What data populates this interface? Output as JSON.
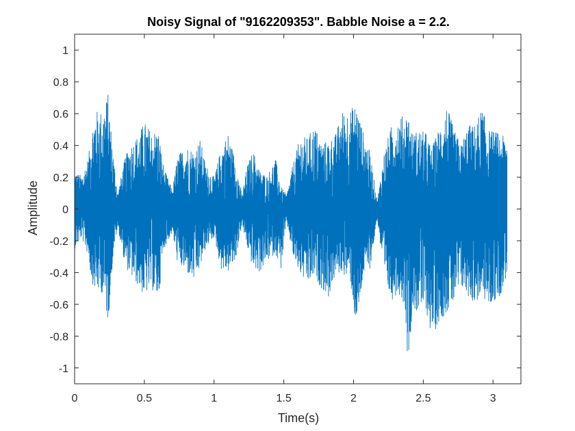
{
  "chart_data": {
    "type": "line",
    "title": "Noisy Signal of \"9162209353\". Babble Noise a = 2.2.",
    "xlabel": "Time(s)",
    "ylabel": "Amplitude",
    "xlim": [
      0,
      3.2
    ],
    "ylim": [
      -1.1,
      1.1
    ],
    "xticks": [
      0,
      0.5,
      1,
      1.5,
      2,
      2.5,
      3
    ],
    "xtick_labels": [
      "0",
      "0.5",
      "1",
      "1.5",
      "2",
      "2.5",
      "3"
    ],
    "yticks": [
      1,
      0.8,
      0.6,
      0.4,
      0.2,
      0,
      -0.2,
      -0.4,
      -0.6,
      -0.8,
      -1
    ],
    "ytick_labels": [
      "1",
      "0.8",
      "0.6",
      "0.4",
      "0.2",
      "0",
      "-0.2",
      "-0.4",
      "-0.6",
      "-0.8",
      "-1"
    ],
    "grid": false,
    "series": [
      {
        "color": "#0072BD",
        "x": [
          0.0,
          0.05,
          0.1,
          0.12,
          0.15,
          0.2,
          0.24,
          0.28,
          0.31,
          0.36,
          0.4,
          0.45,
          0.5,
          0.55,
          0.6,
          0.64,
          0.7,
          0.74,
          0.8,
          0.86,
          0.9,
          0.94,
          1.0,
          1.05,
          1.1,
          1.15,
          1.2,
          1.24,
          1.28,
          1.33,
          1.38,
          1.44,
          1.48,
          1.52,
          1.57,
          1.62,
          1.67,
          1.72,
          1.77,
          1.82,
          1.87,
          1.92,
          1.98,
          2.02,
          2.07,
          2.12,
          2.17,
          2.22,
          2.27,
          2.32,
          2.37,
          2.39,
          2.42,
          2.47,
          2.52,
          2.56,
          2.62,
          2.67,
          2.72,
          2.77,
          2.82,
          2.87,
          2.92,
          2.97,
          3.02,
          3.07,
          3.1
        ],
        "envelope_max": [
          0.24,
          0.21,
          0.33,
          0.5,
          0.62,
          0.62,
          0.73,
          0.32,
          0.1,
          0.32,
          0.41,
          0.46,
          0.55,
          0.49,
          0.5,
          0.26,
          0.12,
          0.34,
          0.4,
          0.37,
          0.44,
          0.28,
          0.2,
          0.38,
          0.48,
          0.32,
          0.09,
          0.28,
          0.37,
          0.24,
          0.21,
          0.32,
          0.14,
          0.09,
          0.3,
          0.46,
          0.45,
          0.53,
          0.42,
          0.43,
          0.47,
          0.62,
          0.63,
          0.67,
          0.48,
          0.35,
          0.05,
          0.36,
          0.52,
          0.58,
          0.59,
          0.62,
          0.48,
          0.5,
          0.48,
          0.38,
          0.53,
          0.65,
          0.5,
          0.41,
          0.53,
          0.53,
          0.64,
          0.5,
          0.49,
          0.46,
          0.45
        ],
        "envelope_min": [
          -0.25,
          -0.18,
          -0.3,
          -0.45,
          -0.52,
          -0.53,
          -0.72,
          -0.25,
          -0.12,
          -0.35,
          -0.42,
          -0.48,
          -0.55,
          -0.5,
          -0.58,
          -0.25,
          -0.15,
          -0.35,
          -0.4,
          -0.46,
          -0.37,
          -0.25,
          -0.18,
          -0.38,
          -0.4,
          -0.34,
          -0.1,
          -0.25,
          -0.38,
          -0.4,
          -0.33,
          -0.28,
          -0.38,
          -0.08,
          -0.32,
          -0.42,
          -0.48,
          -0.43,
          -0.5,
          -0.56,
          -0.42,
          -0.4,
          -0.47,
          -0.78,
          -0.42,
          -0.37,
          -0.06,
          -0.45,
          -0.58,
          -0.52,
          -0.62,
          -1.0,
          -0.65,
          -0.65,
          -0.64,
          -0.81,
          -0.7,
          -0.65,
          -0.6,
          -0.5,
          -0.55,
          -0.6,
          -0.55,
          -0.62,
          -0.58,
          -0.52,
          -0.4
        ]
      }
    ]
  }
}
